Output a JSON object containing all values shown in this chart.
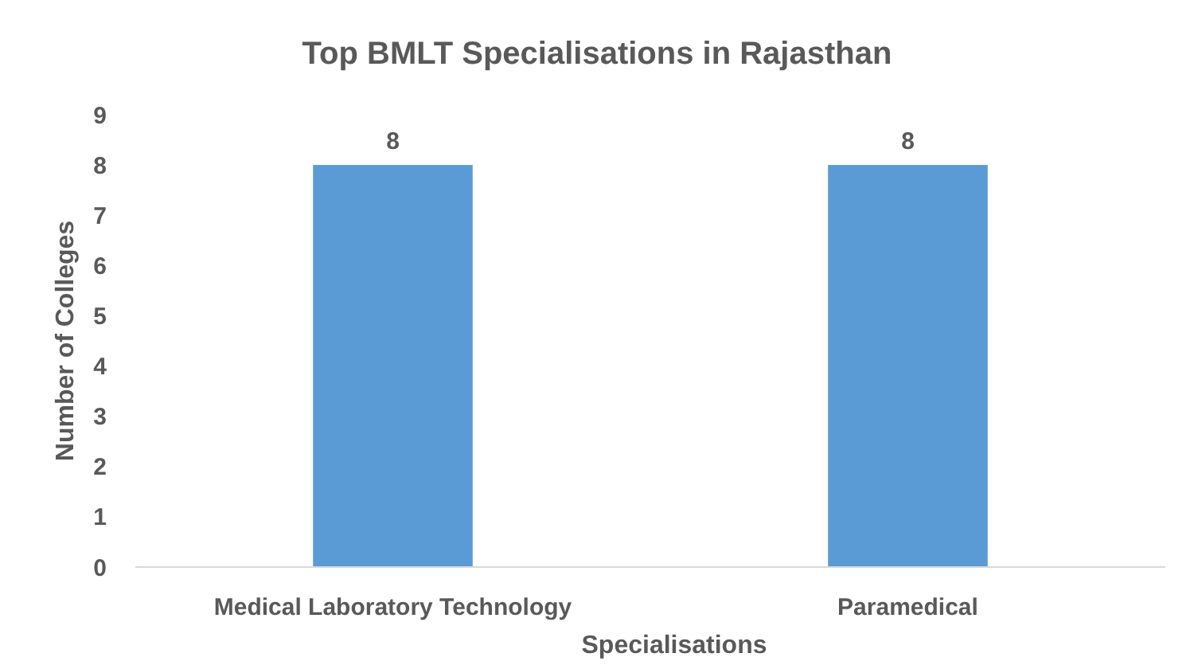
{
  "chart_data": {
    "type": "bar",
    "title": "Top BMLT Specialisations in Rajasthan",
    "xlabel": "Specialisations",
    "ylabel": "Number of Colleges",
    "categories": [
      "Medical Laboratory Technology",
      "Paramedical"
    ],
    "values": [
      8,
      8
    ],
    "color": "#5b9bd5",
    "data_labels": true,
    "ylim": [
      0,
      9
    ],
    "yticks": [
      0,
      1,
      2,
      3,
      4,
      5,
      6,
      7,
      8,
      9
    ],
    "grid": false
  }
}
